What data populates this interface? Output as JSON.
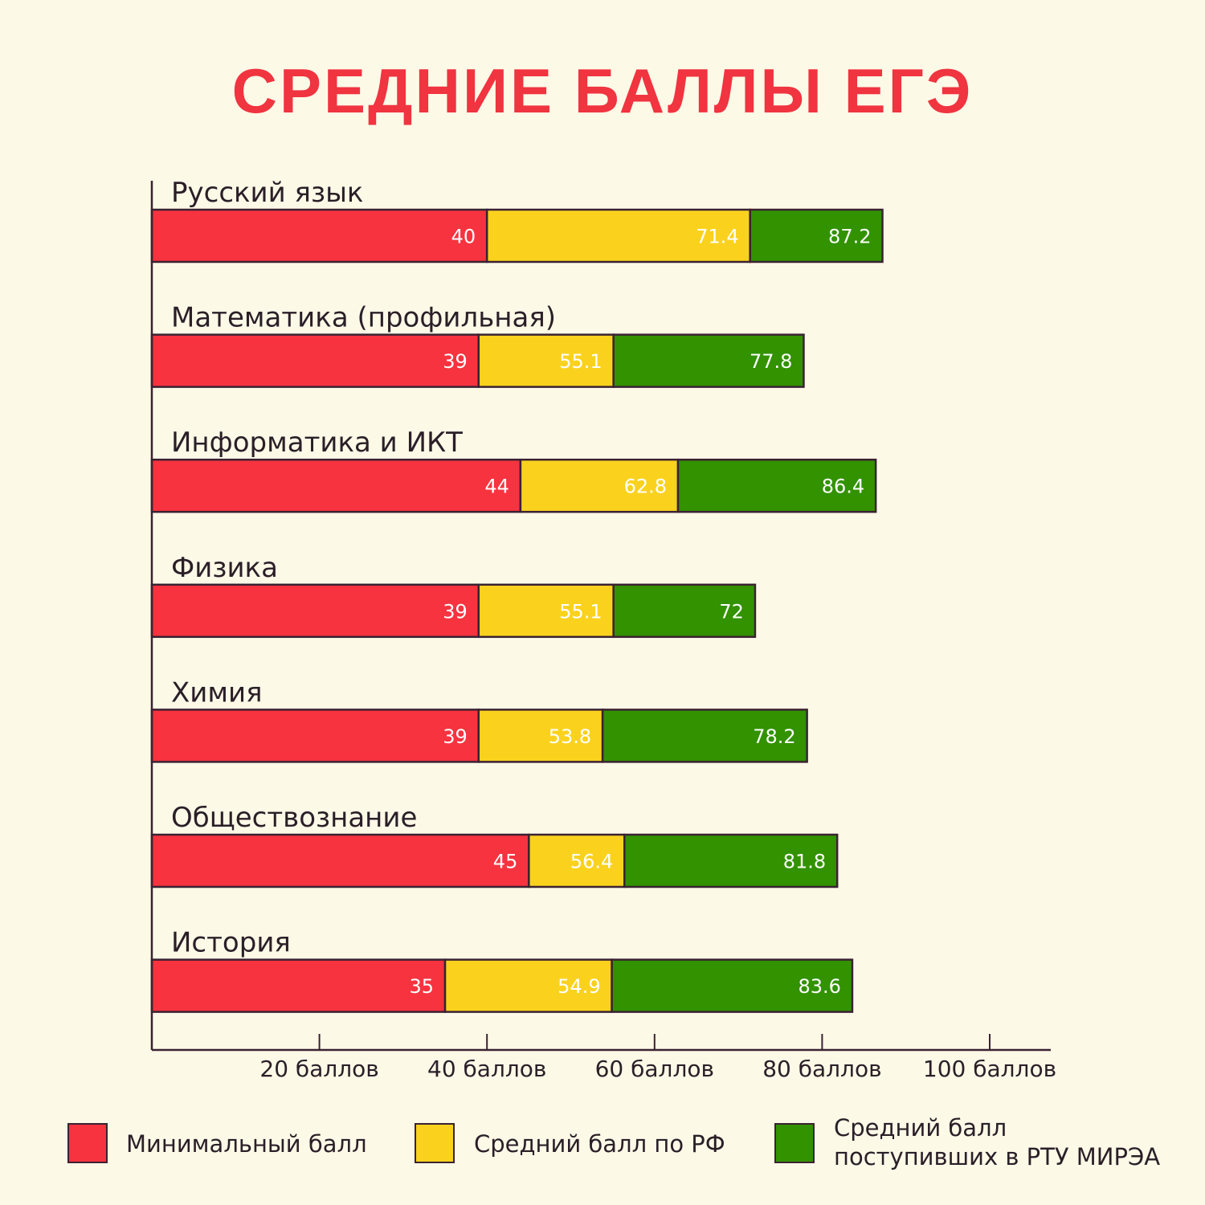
{
  "title": "СРЕДНИЕ БАЛЛЫ ЕГЭ",
  "colors": {
    "min": "#f6333f",
    "rf": "#fad21e",
    "mirea": "#329200",
    "outline": "#3a2232",
    "background": "#fdf9e7"
  },
  "chart_data": {
    "type": "bar",
    "orientation": "horizontal",
    "stacked": false,
    "categories": [
      "Русский язык",
      "Математика (профильная)",
      "Информатика и ИКТ",
      "Физика",
      "Химия",
      "Обществознание",
      "История"
    ],
    "series": [
      {
        "name": "Минимальный балл",
        "values": [
          40,
          39,
          44,
          39,
          39,
          45,
          35
        ]
      },
      {
        "name": "Средний балл по РФ",
        "values": [
          71.4,
          55.1,
          62.8,
          55.1,
          53.8,
          56.4,
          54.9
        ]
      },
      {
        "name": "Средний балл поступивших в РТУ МИРЭА",
        "values": [
          87.2,
          77.8,
          86.4,
          72,
          78.2,
          81.8,
          83.6
        ]
      }
    ],
    "data_labels": [
      [
        "40",
        "71.4",
        "87.2"
      ],
      [
        "39",
        "55.1",
        "77.8"
      ],
      [
        "44",
        "62.8",
        "86.4"
      ],
      [
        "39",
        "55.1",
        "72"
      ],
      [
        "39",
        "53.8",
        "78.2"
      ],
      [
        "45",
        "56.4",
        "81.8"
      ],
      [
        "35",
        "54.9",
        "83.6"
      ]
    ],
    "x_ticks": [
      20,
      40,
      60,
      80,
      100
    ],
    "x_tick_labels": [
      "20 баллов",
      "40 баллов",
      "60 баллов",
      "80 баллов",
      "100 баллов"
    ],
    "xlim": [
      0,
      107
    ],
    "grid": false,
    "legend_position": "bottom"
  },
  "legend": {
    "min_label": "Минимальный балл",
    "rf_label": "Средний балл по РФ",
    "mirea_line1": "Средний балл",
    "mirea_line2": "поступивших в РТУ МИРЭА"
  }
}
